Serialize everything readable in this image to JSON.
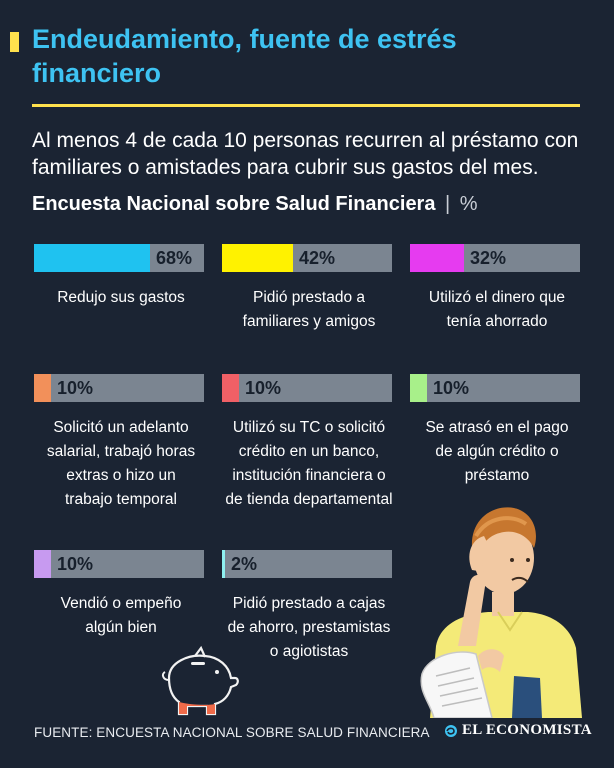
{
  "title": "Endeudamiento, fuente de estrés financiero",
  "subtitle": "Al menos 4 de cada 10 personas recurren al préstamo con familiares o amistades para cubrir sus gastos del mes.",
  "survey": {
    "name": "Encuesta Nacional sobre Salud Financiera",
    "separator": "|",
    "unit": "%"
  },
  "source": "FUENTE: ENCUESTA NACIONAL SOBRE SALUD FINANCIERA",
  "logo": "EL ECONOMISTA",
  "colors": {
    "background": "#1b2433",
    "title": "#3ec3f2",
    "accent": "#ffe14d",
    "bar_track": "#7b8591"
  },
  "chart_data": {
    "type": "bar",
    "title": "Encuesta Nacional sobre Salud Financiera",
    "unit": "%",
    "ylim": [
      0,
      100
    ],
    "items": [
      {
        "label": "Redujo sus gastos",
        "value": 68,
        "display": "68%",
        "color": "#1fc2f0"
      },
      {
        "label": "Pidió prestado a\nfamiliares y amigos",
        "value": 42,
        "display": "42%",
        "color": "#fff200"
      },
      {
        "label": "Utilizó el dinero que\ntenía ahorrado",
        "value": 32,
        "display": "32%",
        "color": "#e63bf0"
      },
      {
        "label": "Solicitó un adelanto\nsalarial, trabajó horas\nextras o hizo un\ntrabajo temporal",
        "value": 10,
        "display": "10%",
        "color": "#f2905a"
      },
      {
        "label": "Utilizó su TC o solicitó\ncrédito en un banco,\ninstitución financiera o\nde tienda departamental",
        "value": 10,
        "display": "10%",
        "color": "#f06066"
      },
      {
        "label": "Se atrasó en el pago\nde algún crédito o\npréstamo",
        "value": 10,
        "display": "10%",
        "color": "#a8f08a"
      },
      {
        "label": "Vendió o empeño\nalgún bien",
        "value": 10,
        "display": "10%",
        "color": "#c79af0"
      },
      {
        "label": "Pidió prestado a cajas\nde ahorro, prestamistas\no agiotistas",
        "value": 2,
        "display": "2%",
        "color": "#8ff0f0"
      }
    ]
  }
}
